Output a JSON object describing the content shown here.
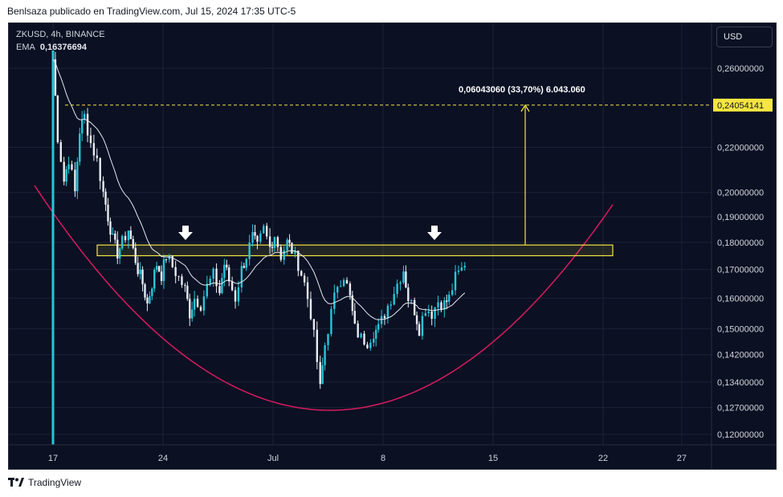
{
  "header": {
    "text": "Benlsaza publicado en TradingView.com, Jul 15, 2024 17:35 UTC-5"
  },
  "legend": {
    "symbol": "ZKUSD, 4h, BINANCE",
    "ema_label": "EMA",
    "ema_value": "0,16376694"
  },
  "currency_button": "USD",
  "footer": {
    "brand": "TradingView"
  },
  "colors": {
    "background": "#0b1023",
    "up": "#26c6da",
    "down": "#e8ecf3",
    "ema": "#e6e8ef",
    "curve": "#d81b60",
    "zone": "#f5e642",
    "grid": "#1c2236"
  },
  "chart_data": {
    "type": "candlestick",
    "title": "",
    "symbol": "ZKUSD",
    "interval": "4h",
    "exchange": "BINANCE",
    "y_axis": {
      "scale": "log",
      "ticks": [
        "0,26000000",
        "0,22000000",
        "0,20000000",
        "0,19000000",
        "0,18000000",
        "0,17000000",
        "0,16000000",
        "0,15000000",
        "0,14200000",
        "0,13400000",
        "0,12700000",
        "0,12000000"
      ]
    },
    "x_axis": {
      "ticks": [
        "17",
        "24",
        "Jul",
        "8",
        "15",
        "22",
        "27"
      ]
    },
    "ylim": [
      0.115,
      0.28
    ],
    "close_path": [
      [
        17,
        0.265
      ],
      [
        17.3,
        0.225
      ],
      [
        17.7,
        0.205
      ],
      [
        18.0,
        0.215
      ],
      [
        18.4,
        0.2
      ],
      [
        18.7,
        0.228
      ],
      [
        19.0,
        0.235
      ],
      [
        19.4,
        0.222
      ],
      [
        19.8,
        0.214
      ],
      [
        20.2,
        0.2
      ],
      [
        20.5,
        0.19
      ],
      [
        20.8,
        0.181
      ],
      [
        21.1,
        0.176
      ],
      [
        21.4,
        0.18
      ],
      [
        21.8,
        0.185
      ],
      [
        22.1,
        0.177
      ],
      [
        22.4,
        0.17
      ],
      [
        22.7,
        0.165
      ],
      [
        23.0,
        0.158
      ],
      [
        23.3,
        0.165
      ],
      [
        23.6,
        0.172
      ],
      [
        23.9,
        0.168
      ],
      [
        24.2,
        0.175
      ],
      [
        24.6,
        0.171
      ],
      [
        25.0,
        0.167
      ],
      [
        25.4,
        0.163
      ],
      [
        25.7,
        0.155
      ],
      [
        26.0,
        0.16
      ],
      [
        26.4,
        0.158
      ],
      [
        26.8,
        0.164
      ],
      [
        27.2,
        0.168
      ],
      [
        27.6,
        0.162
      ],
      [
        27.9,
        0.172
      ],
      [
        28.2,
        0.166
      ],
      [
        28.6,
        0.16
      ],
      [
        29.0,
        0.17
      ],
      [
        29.3,
        0.175
      ],
      [
        29.7,
        0.182
      ],
      [
        30.0,
        0.178
      ],
      [
        30.4,
        0.185
      ],
      [
        30.8,
        0.178
      ],
      [
        31.1,
        0.183
      ],
      [
        31.5,
        0.175
      ],
      [
        31.9,
        0.18
      ],
      [
        32.2,
        0.177
      ],
      [
        32.6,
        0.172
      ],
      [
        33.0,
        0.165
      ],
      [
        33.4,
        0.155
      ],
      [
        33.8,
        0.14
      ],
      [
        34.0,
        0.132
      ],
      [
        34.3,
        0.145
      ],
      [
        34.7,
        0.155
      ],
      [
        35.1,
        0.165
      ],
      [
        35.5,
        0.168
      ],
      [
        35.9,
        0.16
      ],
      [
        36.2,
        0.15
      ],
      [
        36.6,
        0.147
      ],
      [
        37.0,
        0.146
      ],
      [
        37.4,
        0.149
      ],
      [
        37.7,
        0.15
      ],
      [
        38.1,
        0.155
      ],
      [
        38.5,
        0.16
      ],
      [
        38.9,
        0.165
      ],
      [
        39.3,
        0.17
      ],
      [
        39.6,
        0.16
      ],
      [
        40.0,
        0.156
      ],
      [
        40.3,
        0.15
      ],
      [
        40.7,
        0.157
      ],
      [
        41.1,
        0.155
      ],
      [
        41.5,
        0.159
      ],
      [
        41.9,
        0.158
      ],
      [
        42.2,
        0.16
      ],
      [
        42.6,
        0.167
      ],
      [
        43.0,
        0.17
      ],
      [
        43.4,
        0.175
      ]
    ],
    "ema": {
      "label": "EMA",
      "value": 0.16376694
    },
    "annotations": {
      "resistance_zone": [
        0.175,
        0.179
      ],
      "target_price": "0,24054141",
      "target_value": 0.24054141,
      "measure_label": "0,06043060 (33,70%) 6.043.060",
      "arrow_markers": 2,
      "rounded_bottom_curve": true
    },
    "grid": true,
    "legend": "top-left"
  }
}
